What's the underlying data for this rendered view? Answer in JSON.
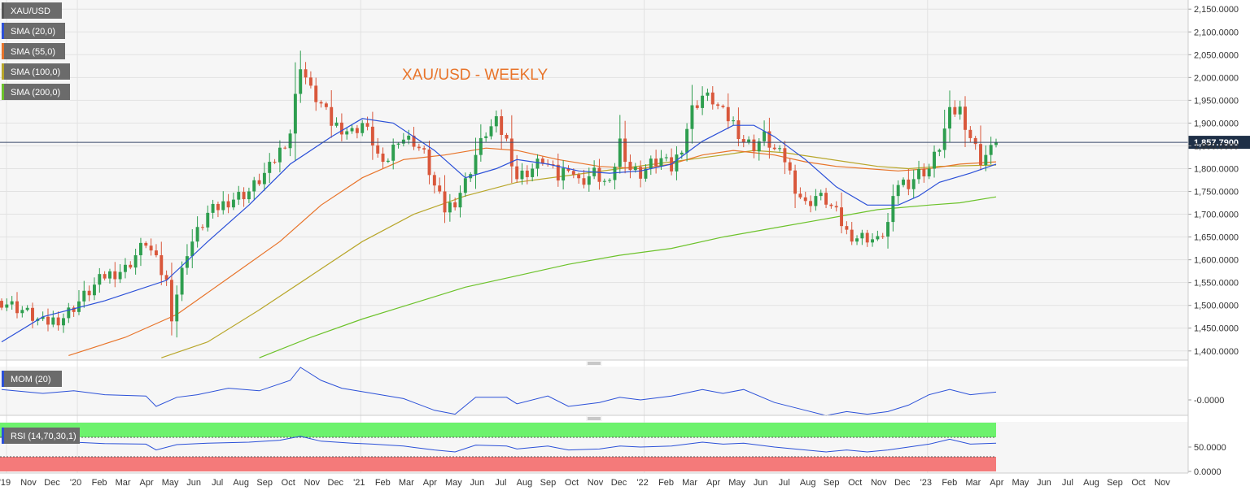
{
  "legend": {
    "symbol": "XAU/USD",
    "sma20": "SMA (20,0)",
    "sma55": "SMA (55,0)",
    "sma100": "SMA (100,0)",
    "sma200": "SMA (200,0)"
  },
  "watermark": "XAU/USD - WEEKLY",
  "last_price_label": "1,857.7900",
  "mom": {
    "label": "MOM (20)",
    "tick": "-0.0000"
  },
  "rsi": {
    "label": "RSI (14,70,30,1)",
    "ticks": [
      "50.0000",
      "0.0000"
    ]
  },
  "time_axis": [
    "'19",
    "Nov",
    "Dec",
    "'20",
    "Feb",
    "Mar",
    "Apr",
    "May",
    "Jun",
    "Jul",
    "Aug",
    "Sep",
    "Oct",
    "Nov",
    "Dec",
    "'21",
    "Feb",
    "Mar",
    "Apr",
    "May",
    "Jun",
    "Jul",
    "Aug",
    "Sep",
    "Oct",
    "Nov",
    "Dec",
    "'22",
    "Feb",
    "Mar",
    "Apr",
    "May",
    "Jun",
    "Jul",
    "Aug",
    "Sep",
    "Oct",
    "Nov",
    "Dec",
    "'23",
    "Feb",
    "Mar",
    "Apr",
    "May",
    "Jun",
    "Jul",
    "Aug",
    "Sep",
    "Oct",
    "Nov"
  ],
  "colors": {
    "up": "#2e9e4f",
    "down": "#d9573b",
    "sma20": "#2b50d8",
    "sma55": "#e8742a",
    "sma100": "#b8a62a",
    "sma200": "#6cc22a",
    "watermark": "#e8742a",
    "rsi_over": "#6df26d",
    "rsi_under": "#f47a7a"
  },
  "chart_data": {
    "type": "candlestick",
    "title": "XAU/USD - WEEKLY",
    "y_range": [
      1380,
      2170
    ],
    "y_ticks": [
      "1,400.0000",
      "1,450.0000",
      "1,500.0000",
      "1,550.0000",
      "1,600.0000",
      "1,650.0000",
      "1,700.0000",
      "1,750.0000",
      "1,800.0000",
      "1,850.0000",
      "1,900.0000",
      "1,950.0000",
      "2,000.0000",
      "2,050.0000",
      "2,100.0000",
      "2,150.0000"
    ],
    "last_price": 1857.79,
    "close_path": [
      [
        0,
        1510
      ],
      [
        4,
        1490
      ],
      [
        8,
        1460
      ],
      [
        12,
        1475
      ],
      [
        16,
        1520
      ],
      [
        20,
        1565
      ],
      [
        24,
        1580
      ],
      [
        28,
        1640
      ],
      [
        32,
        1550
      ],
      [
        33,
        1480
      ],
      [
        36,
        1620
      ],
      [
        40,
        1700
      ],
      [
        44,
        1730
      ],
      [
        48,
        1750
      ],
      [
        52,
        1800
      ],
      [
        56,
        1880
      ],
      [
        58,
        2030
      ],
      [
        60,
        1970
      ],
      [
        62,
        1940
      ],
      [
        64,
        1900
      ],
      [
        68,
        1880
      ],
      [
        70,
        1900
      ],
      [
        72,
        1860
      ],
      [
        74,
        1800
      ],
      [
        77,
        1870
      ],
      [
        80,
        1860
      ],
      [
        82,
        1830
      ],
      [
        84,
        1760
      ],
      [
        86,
        1710
      ],
      [
        88,
        1730
      ],
      [
        90,
        1770
      ],
      [
        92,
        1830
      ],
      [
        94,
        1880
      ],
      [
        96,
        1900
      ],
      [
        98,
        1860
      ],
      [
        100,
        1780
      ],
      [
        103,
        1800
      ],
      [
        105,
        1820
      ],
      [
        108,
        1780
      ],
      [
        110,
        1810
      ],
      [
        112,
        1770
      ],
      [
        115,
        1790
      ],
      [
        118,
        1760
      ],
      [
        120,
        1860
      ],
      [
        122,
        1800
      ],
      [
        124,
        1790
      ],
      [
        126,
        1810
      ],
      [
        128,
        1820
      ],
      [
        130,
        1800
      ],
      [
        132,
        1850
      ],
      [
        134,
        1930
      ],
      [
        136,
        1960
      ],
      [
        138,
        1950
      ],
      [
        140,
        1920
      ],
      [
        142,
        1900
      ],
      [
        144,
        1860
      ],
      [
        146,
        1850
      ],
      [
        148,
        1870
      ],
      [
        150,
        1840
      ],
      [
        152,
        1820
      ],
      [
        154,
        1760
      ],
      [
        156,
        1720
      ],
      [
        158,
        1740
      ],
      [
        160,
        1730
      ],
      [
        162,
        1700
      ],
      [
        164,
        1660
      ],
      [
        166,
        1650
      ],
      [
        168,
        1650
      ],
      [
        170,
        1640
      ],
      [
        172,
        1680
      ],
      [
        174,
        1770
      ],
      [
        176,
        1770
      ],
      [
        178,
        1790
      ],
      [
        180,
        1800
      ],
      [
        182,
        1850
      ],
      [
        184,
        1920
      ],
      [
        186,
        1930
      ],
      [
        188,
        1870
      ],
      [
        190,
        1820
      ],
      [
        192,
        1840
      ],
      [
        193,
        1857
      ]
    ],
    "sma20": [
      [
        0,
        1420
      ],
      [
        8,
        1475
      ],
      [
        20,
        1510
      ],
      [
        32,
        1555
      ],
      [
        40,
        1640
      ],
      [
        48,
        1720
      ],
      [
        56,
        1810
      ],
      [
        64,
        1870
      ],
      [
        70,
        1910
      ],
      [
        76,
        1900
      ],
      [
        84,
        1840
      ],
      [
        90,
        1780
      ],
      [
        96,
        1800
      ],
      [
        100,
        1820
      ],
      [
        106,
        1810
      ],
      [
        112,
        1795
      ],
      [
        118,
        1790
      ],
      [
        124,
        1795
      ],
      [
        130,
        1810
      ],
      [
        136,
        1860
      ],
      [
        142,
        1895
      ],
      [
        146,
        1895
      ],
      [
        150,
        1870
      ],
      [
        156,
        1820
      ],
      [
        162,
        1760
      ],
      [
        168,
        1720
      ],
      [
        174,
        1720
      ],
      [
        178,
        1740
      ],
      [
        182,
        1770
      ],
      [
        188,
        1790
      ],
      [
        193,
        1810
      ]
    ],
    "sma55": [
      [
        13,
        1390
      ],
      [
        24,
        1430
      ],
      [
        34,
        1480
      ],
      [
        44,
        1560
      ],
      [
        54,
        1640
      ],
      [
        62,
        1720
      ],
      [
        70,
        1780
      ],
      [
        78,
        1820
      ],
      [
        86,
        1830
      ],
      [
        94,
        1845
      ],
      [
        100,
        1840
      ],
      [
        108,
        1820
      ],
      [
        116,
        1805
      ],
      [
        124,
        1800
      ],
      [
        130,
        1810
      ],
      [
        136,
        1830
      ],
      [
        142,
        1840
      ],
      [
        146,
        1835
      ],
      [
        150,
        1830
      ],
      [
        156,
        1815
      ],
      [
        162,
        1805
      ],
      [
        168,
        1800
      ],
      [
        174,
        1795
      ],
      [
        180,
        1800
      ],
      [
        186,
        1810
      ],
      [
        193,
        1815
      ]
    ],
    "sma100": [
      [
        31,
        1385
      ],
      [
        40,
        1420
      ],
      [
        50,
        1490
      ],
      [
        60,
        1565
      ],
      [
        70,
        1640
      ],
      [
        80,
        1700
      ],
      [
        90,
        1740
      ],
      [
        100,
        1770
      ],
      [
        110,
        1785
      ],
      [
        120,
        1800
      ],
      [
        130,
        1815
      ],
      [
        140,
        1830
      ],
      [
        146,
        1840
      ],
      [
        152,
        1835
      ],
      [
        158,
        1825
      ],
      [
        164,
        1815
      ],
      [
        170,
        1805
      ],
      [
        176,
        1800
      ],
      [
        182,
        1805
      ],
      [
        193,
        1808
      ]
    ],
    "sma200": [
      [
        50,
        1385
      ],
      [
        60,
        1430
      ],
      [
        70,
        1470
      ],
      [
        80,
        1505
      ],
      [
        90,
        1540
      ],
      [
        100,
        1565
      ],
      [
        110,
        1590
      ],
      [
        120,
        1610
      ],
      [
        130,
        1625
      ],
      [
        140,
        1650
      ],
      [
        150,
        1670
      ],
      [
        160,
        1690
      ],
      [
        170,
        1710
      ],
      [
        180,
        1720
      ],
      [
        186,
        1725
      ],
      [
        193,
        1738
      ]
    ],
    "mom": [
      [
        0,
        16
      ],
      [
        8,
        10
      ],
      [
        14,
        14
      ],
      [
        20,
        8
      ],
      [
        28,
        6
      ],
      [
        30,
        -10
      ],
      [
        34,
        4
      ],
      [
        38,
        8
      ],
      [
        44,
        18
      ],
      [
        50,
        14
      ],
      [
        56,
        30
      ],
      [
        58,
        50
      ],
      [
        62,
        30
      ],
      [
        66,
        18
      ],
      [
        72,
        10
      ],
      [
        78,
        2
      ],
      [
        84,
        -16
      ],
      [
        88,
        -22
      ],
      [
        92,
        4
      ],
      [
        98,
        4
      ],
      [
        100,
        -6
      ],
      [
        106,
        6
      ],
      [
        110,
        -10
      ],
      [
        116,
        -4
      ],
      [
        120,
        4
      ],
      [
        124,
        0
      ],
      [
        130,
        6
      ],
      [
        136,
        16
      ],
      [
        140,
        10
      ],
      [
        144,
        16
      ],
      [
        150,
        -4
      ],
      [
        156,
        -16
      ],
      [
        160,
        -24
      ],
      [
        164,
        -18
      ],
      [
        168,
        -22
      ],
      [
        172,
        -18
      ],
      [
        176,
        -8
      ],
      [
        180,
        8
      ],
      [
        184,
        16
      ],
      [
        188,
        8
      ],
      [
        193,
        12
      ]
    ],
    "rsi": [
      [
        0,
        62
      ],
      [
        8,
        58
      ],
      [
        14,
        60
      ],
      [
        20,
        57
      ],
      [
        28,
        56
      ],
      [
        30,
        44
      ],
      [
        34,
        55
      ],
      [
        40,
        58
      ],
      [
        48,
        60
      ],
      [
        54,
        64
      ],
      [
        58,
        72
      ],
      [
        62,
        62
      ],
      [
        68,
        58
      ],
      [
        72,
        56
      ],
      [
        78,
        52
      ],
      [
        84,
        44
      ],
      [
        88,
        40
      ],
      [
        92,
        54
      ],
      [
        98,
        52
      ],
      [
        100,
        46
      ],
      [
        106,
        52
      ],
      [
        110,
        44
      ],
      [
        116,
        46
      ],
      [
        120,
        52
      ],
      [
        124,
        50
      ],
      [
        130,
        52
      ],
      [
        136,
        60
      ],
      [
        140,
        56
      ],
      [
        144,
        58
      ],
      [
        150,
        50
      ],
      [
        156,
        44
      ],
      [
        160,
        40
      ],
      [
        164,
        44
      ],
      [
        168,
        40
      ],
      [
        172,
        44
      ],
      [
        176,
        50
      ],
      [
        180,
        56
      ],
      [
        184,
        66
      ],
      [
        188,
        56
      ],
      [
        193,
        58
      ]
    ],
    "rsi_levels": [
      30,
      70
    ]
  }
}
